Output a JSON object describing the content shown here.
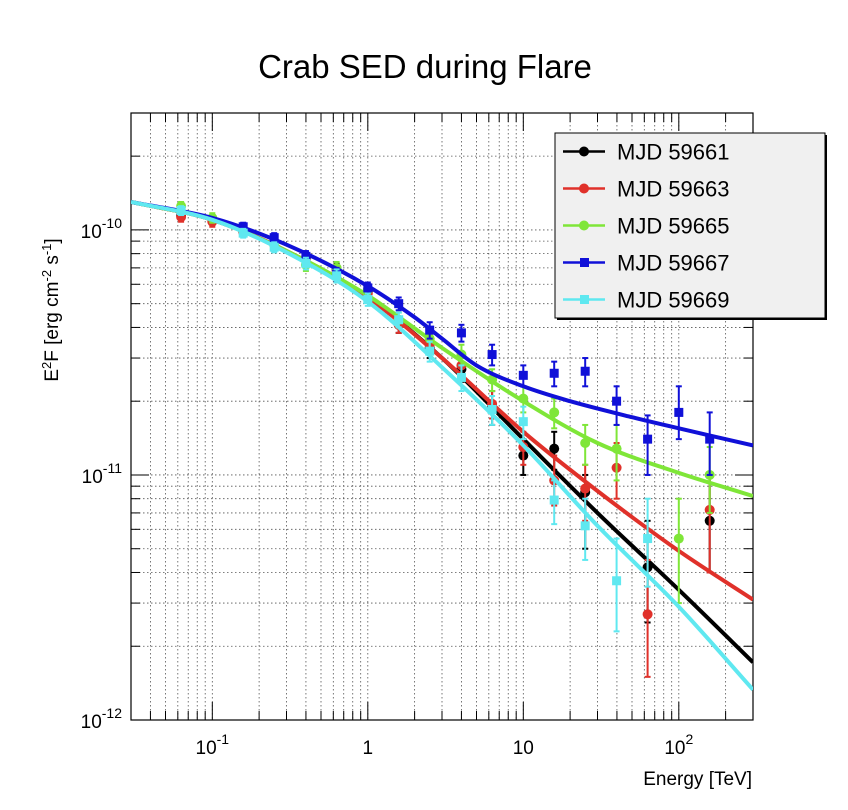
{
  "chart_data": {
    "type": "scatter",
    "title": "Crab SED during Flare",
    "xlabel": "Energy [TeV]",
    "ylabel": "E^2F [erg cm^-2 s^-1]",
    "ylabel_parts": {
      "e": "E",
      "e_sup": "2",
      "f": "F [erg cm",
      "cm_sup": "-2",
      "s": " s",
      "s_sup": "-1",
      "close": "]"
    },
    "xscale": "log",
    "yscale": "log",
    "xlim": [
      0.03,
      300
    ],
    "ylim": [
      1e-12,
      3e-10
    ],
    "grid": true,
    "legend_position": "top-right",
    "x_tick_labels": [
      {
        "value": 0.1,
        "base": "10",
        "exp": "-1"
      },
      {
        "value": 1,
        "base": "1",
        "exp": ""
      },
      {
        "value": 10,
        "base": "10",
        "exp": ""
      },
      {
        "value": 100,
        "base": "10",
        "exp": "2"
      }
    ],
    "y_tick_labels": [
      {
        "value": 1e-12,
        "base": "10",
        "exp": "-12"
      },
      {
        "value": 1e-11,
        "base": "10",
        "exp": "-11"
      },
      {
        "value": 1e-10,
        "base": "10",
        "exp": "-10"
      }
    ],
    "series": [
      {
        "name": "MJD 59661",
        "color": "#000000",
        "marker": "circle",
        "curve": {
          "x": [
            0.03,
            0.1,
            0.3,
            1,
            3,
            10,
            30,
            100,
            300
          ],
          "y": [
            1.3e-10,
            1.1e-10,
            8.2e-11,
            5.3e-11,
            3e-11,
            1.4e-11,
            7e-12,
            3.4e-12,
            1.72e-12
          ]
        },
        "points": [
          {
            "x": 0.063,
            "y": 1.15e-10,
            "ylo": 1.1e-10,
            "yhi": 1.2e-10
          },
          {
            "x": 0.1,
            "y": 1.1e-10,
            "ylo": 1.05e-10,
            "yhi": 1.15e-10
          },
          {
            "x": 0.158,
            "y": 9.9e-11,
            "ylo": 9.5e-11,
            "yhi": 1.03e-10
          },
          {
            "x": 0.25,
            "y": 8.9e-11,
            "ylo": 8.5e-11,
            "yhi": 9.3e-11
          },
          {
            "x": 0.4,
            "y": 7.7e-11,
            "ylo": 7.3e-11,
            "yhi": 8.1e-11
          },
          {
            "x": 0.63,
            "y": 6.9e-11,
            "ylo": 6.5e-11,
            "yhi": 7.3e-11
          },
          {
            "x": 1.0,
            "y": 5.6e-11,
            "ylo": 5.3e-11,
            "yhi": 5.9e-11
          },
          {
            "x": 1.58,
            "y": 4.1e-11,
            "ylo": 3.8e-11,
            "yhi": 4.4e-11
          },
          {
            "x": 2.5,
            "y": 3.3e-11,
            "ylo": 3e-11,
            "yhi": 3.6e-11
          },
          {
            "x": 4.0,
            "y": 2.7e-11,
            "ylo": 2.4e-11,
            "yhi": 3e-11
          },
          {
            "x": 6.3,
            "y": 1.9e-11,
            "ylo": 1.6e-11,
            "yhi": 2.2e-11
          },
          {
            "x": 10,
            "y": 1.2e-11,
            "ylo": 1e-11,
            "yhi": 1.4e-11
          },
          {
            "x": 15.8,
            "y": 1.28e-11,
            "ylo": 1.05e-11,
            "yhi": 1.5e-11
          },
          {
            "x": 25,
            "y": 8.5e-12,
            "ylo": 5e-12,
            "yhi": 1e-11
          },
          {
            "x": 63,
            "y": 4.2e-12,
            "ylo": 2.5e-12,
            "yhi": 6.5e-12
          },
          {
            "x": 158,
            "y": 6.5e-12,
            "ylo": 4e-12,
            "yhi": 1e-11
          }
        ]
      },
      {
        "name": "MJD 59663",
        "color": "#e0312a",
        "marker": "circle",
        "curve": {
          "x": [
            0.03,
            0.1,
            0.3,
            1,
            3,
            10,
            30,
            100,
            300
          ],
          "y": [
            1.3e-10,
            1.1e-10,
            8.2e-11,
            5.3e-11,
            3e-11,
            1.5e-11,
            8.6e-12,
            4.9e-12,
            3.1e-12
          ]
        },
        "points": [
          {
            "x": 0.063,
            "y": 1.13e-10,
            "ylo": 1.08e-10,
            "yhi": 1.18e-10
          },
          {
            "x": 0.1,
            "y": 1.08e-10,
            "ylo": 1.03e-10,
            "yhi": 1.13e-10
          },
          {
            "x": 0.158,
            "y": 9.8e-11,
            "ylo": 9.4e-11,
            "yhi": 1.02e-10
          },
          {
            "x": 0.25,
            "y": 8.8e-11,
            "ylo": 8.4e-11,
            "yhi": 9.2e-11
          },
          {
            "x": 0.4,
            "y": 7.6e-11,
            "ylo": 7.2e-11,
            "yhi": 8e-11
          },
          {
            "x": 0.63,
            "y": 6.8e-11,
            "ylo": 6.4e-11,
            "yhi": 7.2e-11
          },
          {
            "x": 1.0,
            "y": 5.5e-11,
            "ylo": 5.2e-11,
            "yhi": 5.8e-11
          },
          {
            "x": 1.58,
            "y": 4.1e-11,
            "ylo": 3.8e-11,
            "yhi": 4.4e-11
          },
          {
            "x": 2.5,
            "y": 3.4e-11,
            "ylo": 3.1e-11,
            "yhi": 3.7e-11
          },
          {
            "x": 4.0,
            "y": 2.8e-11,
            "ylo": 2.5e-11,
            "yhi": 3.1e-11
          },
          {
            "x": 6.3,
            "y": 1.95e-11,
            "ylo": 1.7e-11,
            "yhi": 2.2e-11
          },
          {
            "x": 10,
            "y": 1.3e-11,
            "ylo": 1.1e-11,
            "yhi": 1.5e-11
          },
          {
            "x": 15.8,
            "y": 9.5e-12,
            "ylo": 7.5e-12,
            "yhi": 1.2e-11
          },
          {
            "x": 25,
            "y": 8.8e-12,
            "ylo": 6.5e-12,
            "yhi": 1.1e-11
          },
          {
            "x": 39.8,
            "y": 1.07e-11,
            "ylo": 8e-12,
            "yhi": 1.35e-11
          },
          {
            "x": 63,
            "y": 2.7e-12,
            "ylo": 1.5e-12,
            "yhi": 4.5e-12
          },
          {
            "x": 158,
            "y": 7.2e-12,
            "ylo": 4e-12,
            "yhi": 1e-11
          }
        ]
      },
      {
        "name": "MJD 59665",
        "color": "#7fe638",
        "marker": "circle",
        "curve": {
          "x": [
            0.03,
            0.1,
            0.3,
            1,
            3,
            10,
            30,
            100,
            300
          ],
          "y": [
            1.3e-10,
            1.1e-10,
            8.2e-11,
            5.4e-11,
            3.3e-11,
            2e-11,
            1.35e-11,
            1.02e-11,
            8.2e-12
          ]
        },
        "points": [
          {
            "x": 0.063,
            "y": 1.25e-10,
            "ylo": 1.2e-10,
            "yhi": 1.3e-10
          },
          {
            "x": 0.1,
            "y": 1.12e-10,
            "ylo": 1.07e-10,
            "yhi": 1.17e-10
          },
          {
            "x": 0.158,
            "y": 1e-10,
            "ylo": 9.6e-11,
            "yhi": 1.04e-10
          },
          {
            "x": 0.25,
            "y": 8.7e-11,
            "ylo": 8.3e-11,
            "yhi": 9.1e-11
          },
          {
            "x": 0.4,
            "y": 7.2e-11,
            "ylo": 6.8e-11,
            "yhi": 7.6e-11
          },
          {
            "x": 0.63,
            "y": 7e-11,
            "ylo": 6.6e-11,
            "yhi": 7.4e-11
          },
          {
            "x": 1.0,
            "y": 5.7e-11,
            "ylo": 5.4e-11,
            "yhi": 6e-11
          },
          {
            "x": 1.58,
            "y": 4.3e-11,
            "ylo": 4e-11,
            "yhi": 4.6e-11
          },
          {
            "x": 2.5,
            "y": 3.6e-11,
            "ylo": 3.3e-11,
            "yhi": 3.9e-11
          },
          {
            "x": 4.0,
            "y": 3.1e-11,
            "ylo": 2.8e-11,
            "yhi": 3.4e-11
          },
          {
            "x": 6.3,
            "y": 2.45e-11,
            "ylo": 2.2e-11,
            "yhi": 2.7e-11
          },
          {
            "x": 10,
            "y": 2.05e-11,
            "ylo": 1.8e-11,
            "yhi": 2.3e-11
          },
          {
            "x": 15.8,
            "y": 1.8e-11,
            "ylo": 1.55e-11,
            "yhi": 2.05e-11
          },
          {
            "x": 25,
            "y": 1.35e-11,
            "ylo": 1.1e-11,
            "yhi": 1.6e-11
          },
          {
            "x": 39.8,
            "y": 1.28e-11,
            "ylo": 9.5e-12,
            "yhi": 1.6e-11
          },
          {
            "x": 100,
            "y": 5.5e-12,
            "ylo": 3e-12,
            "yhi": 8e-12
          },
          {
            "x": 158,
            "y": 1e-11,
            "ylo": 7e-12,
            "yhi": 1.3e-11
          }
        ]
      },
      {
        "name": "MJD 59667",
        "color": "#1010d8",
        "marker": "square",
        "curve": {
          "x": [
            0.03,
            0.1,
            0.3,
            1,
            2,
            3,
            5,
            10,
            20,
            50,
            100,
            300
          ],
          "y": [
            1.3e-10,
            1.12e-10,
            8.7e-11,
            5.9e-11,
            4.4e-11,
            3.6e-11,
            2.8e-11,
            2.3e-11,
            2e-11,
            1.72e-11,
            1.55e-11,
            1.32e-11
          ]
        },
        "points": [
          {
            "x": 0.158,
            "y": 1.03e-10,
            "ylo": 9.9e-11,
            "yhi": 1.07e-10
          },
          {
            "x": 0.25,
            "y": 9.3e-11,
            "ylo": 8.9e-11,
            "yhi": 9.7e-11
          },
          {
            "x": 0.4,
            "y": 7.8e-11,
            "ylo": 7.4e-11,
            "yhi": 8.2e-11
          },
          {
            "x": 0.63,
            "y": 6.6e-11,
            "ylo": 6.2e-11,
            "yhi": 7e-11
          },
          {
            "x": 1.0,
            "y": 5.8e-11,
            "ylo": 5.5e-11,
            "yhi": 6.1e-11
          },
          {
            "x": 1.58,
            "y": 5e-11,
            "ylo": 4.7e-11,
            "yhi": 5.3e-11
          },
          {
            "x": 2.5,
            "y": 3.9e-11,
            "ylo": 3.6e-11,
            "yhi": 4.2e-11
          },
          {
            "x": 4.0,
            "y": 3.8e-11,
            "ylo": 3.5e-11,
            "yhi": 4.1e-11
          },
          {
            "x": 6.3,
            "y": 3.1e-11,
            "ylo": 2.8e-11,
            "yhi": 3.4e-11
          },
          {
            "x": 10,
            "y": 2.55e-11,
            "ylo": 2.3e-11,
            "yhi": 2.8e-11
          },
          {
            "x": 15.8,
            "y": 2.6e-11,
            "ylo": 2.3e-11,
            "yhi": 2.9e-11
          },
          {
            "x": 25,
            "y": 2.65e-11,
            "ylo": 2.3e-11,
            "yhi": 3e-11
          },
          {
            "x": 39.8,
            "y": 2e-11,
            "ylo": 1.6e-11,
            "yhi": 2.3e-11
          },
          {
            "x": 63,
            "y": 1.4e-11,
            "ylo": 1e-11,
            "yhi": 1.75e-11
          },
          {
            "x": 100,
            "y": 1.8e-11,
            "ylo": 1.4e-11,
            "yhi": 2.3e-11
          },
          {
            "x": 158,
            "y": 1.4e-11,
            "ylo": 1e-11,
            "yhi": 1.8e-11
          }
        ]
      },
      {
        "name": "MJD 59669",
        "color": "#5fe8f0",
        "marker": "square",
        "curve": {
          "x": [
            0.03,
            0.1,
            0.3,
            1,
            3,
            10,
            30,
            100,
            300
          ],
          "y": [
            1.3e-10,
            1.1e-10,
            8.1e-11,
            5.1e-11,
            2.75e-11,
            1.32e-11,
            6.2e-12,
            2.9e-12,
            1.33e-12
          ]
        },
        "points": [
          {
            "x": 0.063,
            "y": 1.2e-10,
            "ylo": 1.15e-10,
            "yhi": 1.25e-10
          },
          {
            "x": 0.158,
            "y": 9.7e-11,
            "ylo": 9.3e-11,
            "yhi": 1.01e-10
          },
          {
            "x": 0.25,
            "y": 8.5e-11,
            "ylo": 8.1e-11,
            "yhi": 8.9e-11
          },
          {
            "x": 0.4,
            "y": 7.3e-11,
            "ylo": 6.9e-11,
            "yhi": 7.7e-11
          },
          {
            "x": 0.63,
            "y": 6.5e-11,
            "ylo": 6.1e-11,
            "yhi": 6.9e-11
          },
          {
            "x": 1.0,
            "y": 5.2e-11,
            "ylo": 4.9e-11,
            "yhi": 5.5e-11
          },
          {
            "x": 1.58,
            "y": 4.3e-11,
            "ylo": 4e-11,
            "yhi": 4.6e-11
          },
          {
            "x": 2.5,
            "y": 3.2e-11,
            "ylo": 2.9e-11,
            "yhi": 3.5e-11
          },
          {
            "x": 4.0,
            "y": 2.5e-11,
            "ylo": 2.2e-11,
            "yhi": 2.8e-11
          },
          {
            "x": 6.3,
            "y": 1.85e-11,
            "ylo": 1.6e-11,
            "yhi": 2.1e-11
          },
          {
            "x": 10,
            "y": 1.65e-11,
            "ylo": 1.4e-11,
            "yhi": 1.9e-11
          },
          {
            "x": 15.8,
            "y": 7.9e-12,
            "ylo": 6.3e-12,
            "yhi": 9.5e-12
          },
          {
            "x": 25,
            "y": 6.2e-12,
            "ylo": 4.5e-12,
            "yhi": 8e-12
          },
          {
            "x": 39.8,
            "y": 3.7e-12,
            "ylo": 2.3e-12,
            "yhi": 5.5e-12
          },
          {
            "x": 63,
            "y": 5.5e-12,
            "ylo": 3.5e-12,
            "yhi": 8e-12
          }
        ]
      }
    ]
  }
}
